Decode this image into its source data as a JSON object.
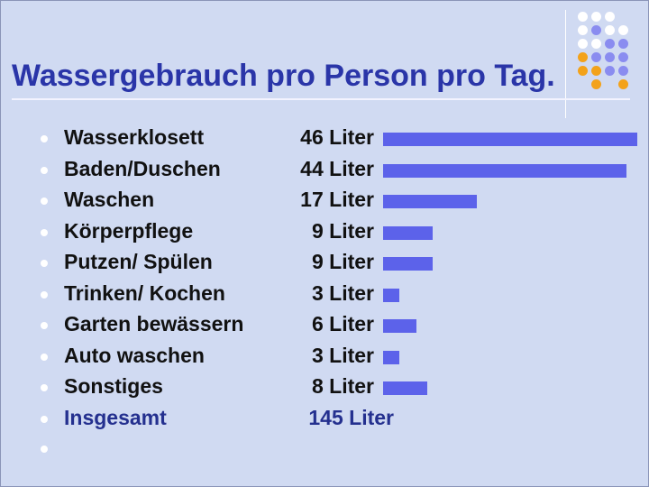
{
  "chart_data": {
    "type": "bar",
    "title": "Wassergebrauch pro Person pro Tag.",
    "categories": [
      "Wasserklosett",
      "Baden/Duschen",
      "Waschen",
      "Körperpflege",
      "Putzen/ Spülen",
      "Trinken/ Kochen",
      "Garten bewässern",
      "Auto waschen",
      "Sonstiges"
    ],
    "values": [
      46,
      44,
      17,
      9,
      9,
      3,
      6,
      3,
      8
    ],
    "value_labels": [
      "46 Liter",
      "44 Liter",
      "17 Liter",
      "9 Liter",
      "9 Liter",
      "3 Liter",
      "6 Liter",
      "3 Liter",
      "8 Liter"
    ],
    "total": {
      "label": "Insgesamt",
      "value": 145,
      "value_label": "145 Liter"
    },
    "unit": "Liter",
    "orientation": "horizontal",
    "bar_color": "#5c62ea"
  },
  "theme": {
    "title_color": "#2a35a8",
    "dot_colors": [
      "#f3a21a",
      "#8a8cf0",
      "#ffffff"
    ]
  }
}
